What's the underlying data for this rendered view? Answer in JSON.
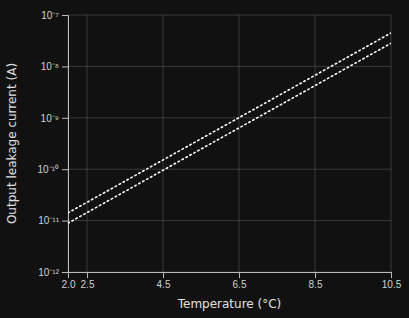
{
  "chart_data": {
    "type": "line",
    "x": [
      2,
      10.5
    ],
    "series": [
      {
        "values": [
          8.912509381337456e-12,
          2.8183829312644534e-08
        ],
        "color": "#ffffff",
        "line_style": "dotted"
      },
      {
        "values": [
          1.4125375446227544e-11,
          4.466835921509631e-08
        ],
        "color": "#ffffff",
        "line_style": "dotted"
      }
    ],
    "xlabel": "Temperature (°C)",
    "ylabel": "Output leakage current (A)",
    "xlim": [
      2,
      10.5
    ],
    "xticks": [
      {
        "value": 2,
        "label": "2.0"
      },
      2.5,
      4.5,
      6.5,
      8.5,
      10.5
    ],
    "ylim": [
      1e-12,
      1e-07
    ],
    "yticks": [
      {
        "value": 1e-12,
        "label": "10⁻¹²"
      },
      {
        "value": 1e-11,
        "label": "10⁻¹¹"
      },
      {
        "value": 1e-10,
        "label": "10⁻¹⁰"
      },
      {
        "value": 1e-09,
        "label": "10⁻⁹"
      },
      {
        "value": 1e-08,
        "label": "10⁻⁸"
      },
      {
        "value": 1e-07,
        "label": "10⁻⁷"
      }
    ],
    "log": "y",
    "grid": true
  }
}
